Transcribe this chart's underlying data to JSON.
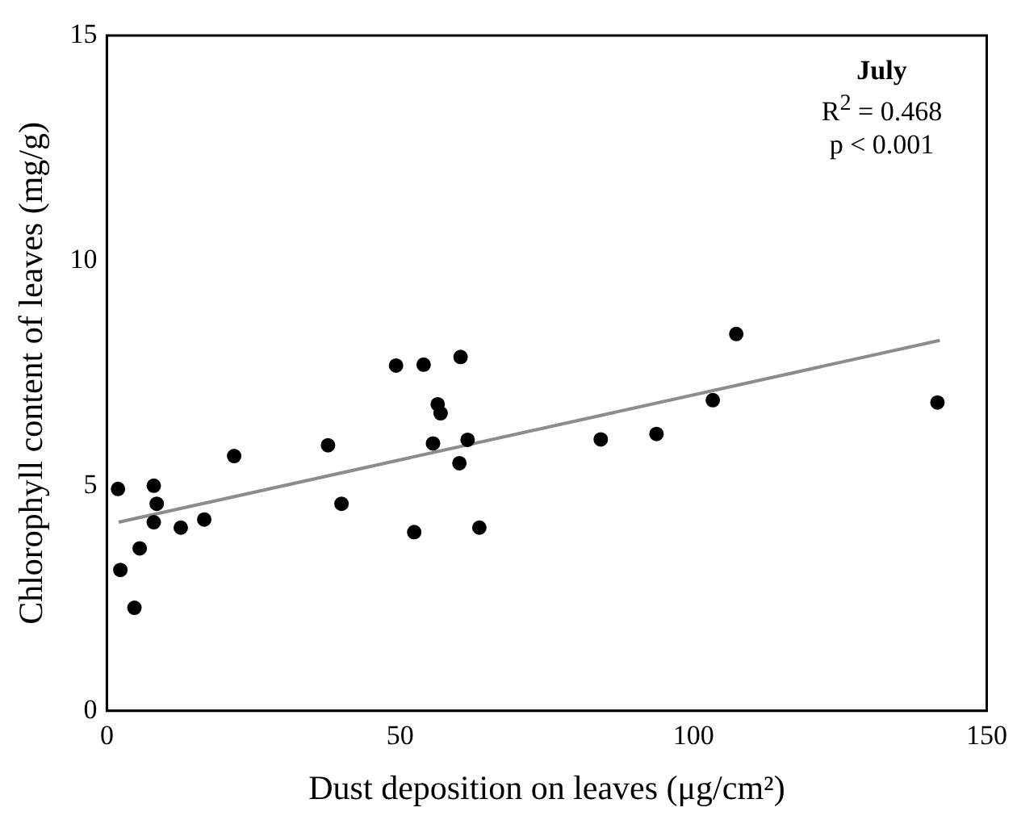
{
  "chart_data": {
    "type": "scatter",
    "title": "July",
    "xlabel": "Dust deposition on leaves (μg/cm²)",
    "ylabel": "Chlorophyll content of leaves (mg/g)",
    "annotations": [
      "R$^{2}$ = 0.468",
      "p < 0.001"
    ],
    "series": [
      {
        "color": "#000000",
        "marker": "circle",
        "x": [
          1.9,
          2.3,
          4.7,
          5.6,
          8.0,
          8.5,
          8.0,
          12.6,
          16.6,
          21.7,
          37.7,
          40.0,
          49.3,
          54.0,
          60.3,
          56.4,
          56.9,
          55.6,
          61.5,
          60.1,
          52.4,
          63.5,
          84.2,
          93.7,
          103.3,
          107.3,
          141.6
        ],
        "values": [
          4.93,
          3.13,
          2.29,
          3.61,
          5.0,
          4.6,
          4.19,
          4.07,
          4.25,
          5.66,
          5.9,
          4.6,
          7.67,
          7.69,
          7.86,
          6.81,
          6.61,
          5.94,
          6.02,
          5.5,
          3.97,
          4.07,
          6.03,
          6.15,
          6.9,
          8.37,
          6.85
        ]
      },
      {
        "type": "line",
        "marker": "none",
        "color": "#8c8c8c",
        "x": [
          2,
          142
        ],
        "values": [
          4.19,
          8.23
        ]
      }
    ],
    "xlim": [
      0,
      150
    ],
    "xticks": [
      0,
      50,
      100,
      150
    ],
    "ylim": [
      0,
      15
    ],
    "yticks": [
      0,
      5,
      10,
      15
    ],
    "grid": false,
    "legend": false
  }
}
